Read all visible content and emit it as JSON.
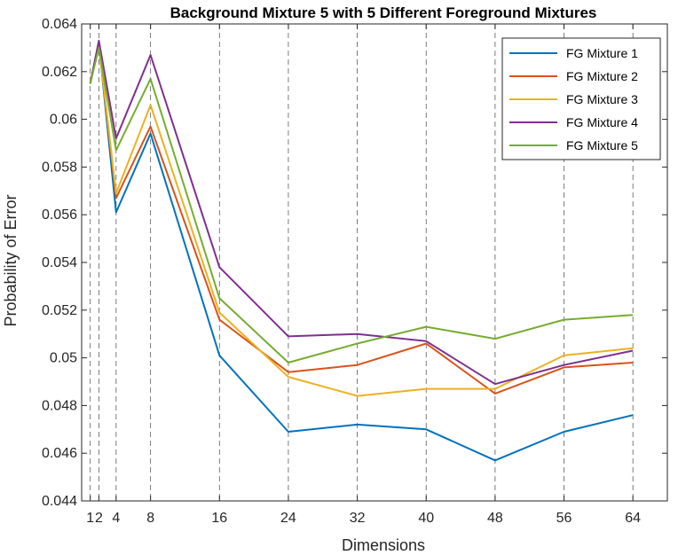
{
  "chart_data": {
    "type": "line",
    "title": "Background Mixture 5 with 5 Different Foreground Mixtures",
    "xlabel": "Dimensions",
    "ylabel": "Probability of Error",
    "x": [
      1,
      2,
      4,
      8,
      16,
      24,
      32,
      40,
      48,
      56,
      64
    ],
    "x_ticks": [
      1,
      2,
      4,
      8,
      16,
      24,
      32,
      40,
      48,
      56,
      64
    ],
    "x_tick_labels": [
      "1",
      "2",
      "4",
      "8",
      "16",
      "24",
      "32",
      "40",
      "48",
      "56",
      "64"
    ],
    "xlim": [
      0,
      68
    ],
    "ylim": [
      0.044,
      0.064
    ],
    "y_ticks": [
      0.044,
      0.046,
      0.048,
      0.05,
      0.052,
      0.054,
      0.056,
      0.058,
      0.06,
      0.062,
      0.064
    ],
    "y_tick_labels": [
      "0.044",
      "0.046",
      "0.048",
      "0.05",
      "0.052",
      "0.054",
      "0.056",
      "0.058",
      "0.06",
      "0.062",
      "0.064"
    ],
    "vertical_dashed_gridlines_at": [
      1,
      2,
      4,
      8,
      16,
      24,
      32,
      40,
      48,
      56,
      64
    ],
    "legend_position": "top-right",
    "series": [
      {
        "name": "FG Mixture 1",
        "color": "#0072BD",
        "values": [
          0.0615,
          0.0632,
          0.0561,
          0.0594,
          0.0501,
          0.0469,
          0.0472,
          0.047,
          0.0457,
          0.0469,
          0.0476
        ]
      },
      {
        "name": "FG Mixture 2",
        "color": "#D95319",
        "values": [
          0.0615,
          0.0632,
          0.0567,
          0.0597,
          0.0516,
          0.0494,
          0.0497,
          0.0506,
          0.0485,
          0.0496,
          0.0498
        ]
      },
      {
        "name": "FG Mixture 3",
        "color": "#EDB120",
        "values": [
          0.0615,
          0.0631,
          0.0569,
          0.0606,
          0.0519,
          0.0492,
          0.0484,
          0.0487,
          0.0487,
          0.0501,
          0.0504
        ]
      },
      {
        "name": "FG Mixture 4",
        "color": "#7E2F8E",
        "values": [
          0.0615,
          0.0633,
          0.0592,
          0.0627,
          0.0538,
          0.0509,
          0.051,
          0.0507,
          0.0489,
          0.0497,
          0.0503
        ]
      },
      {
        "name": "FG Mixture 5",
        "color": "#77AC30",
        "values": [
          0.0615,
          0.063,
          0.0587,
          0.0617,
          0.0525,
          0.0498,
          0.0506,
          0.0513,
          0.0508,
          0.0516,
          0.0518
        ]
      }
    ]
  }
}
